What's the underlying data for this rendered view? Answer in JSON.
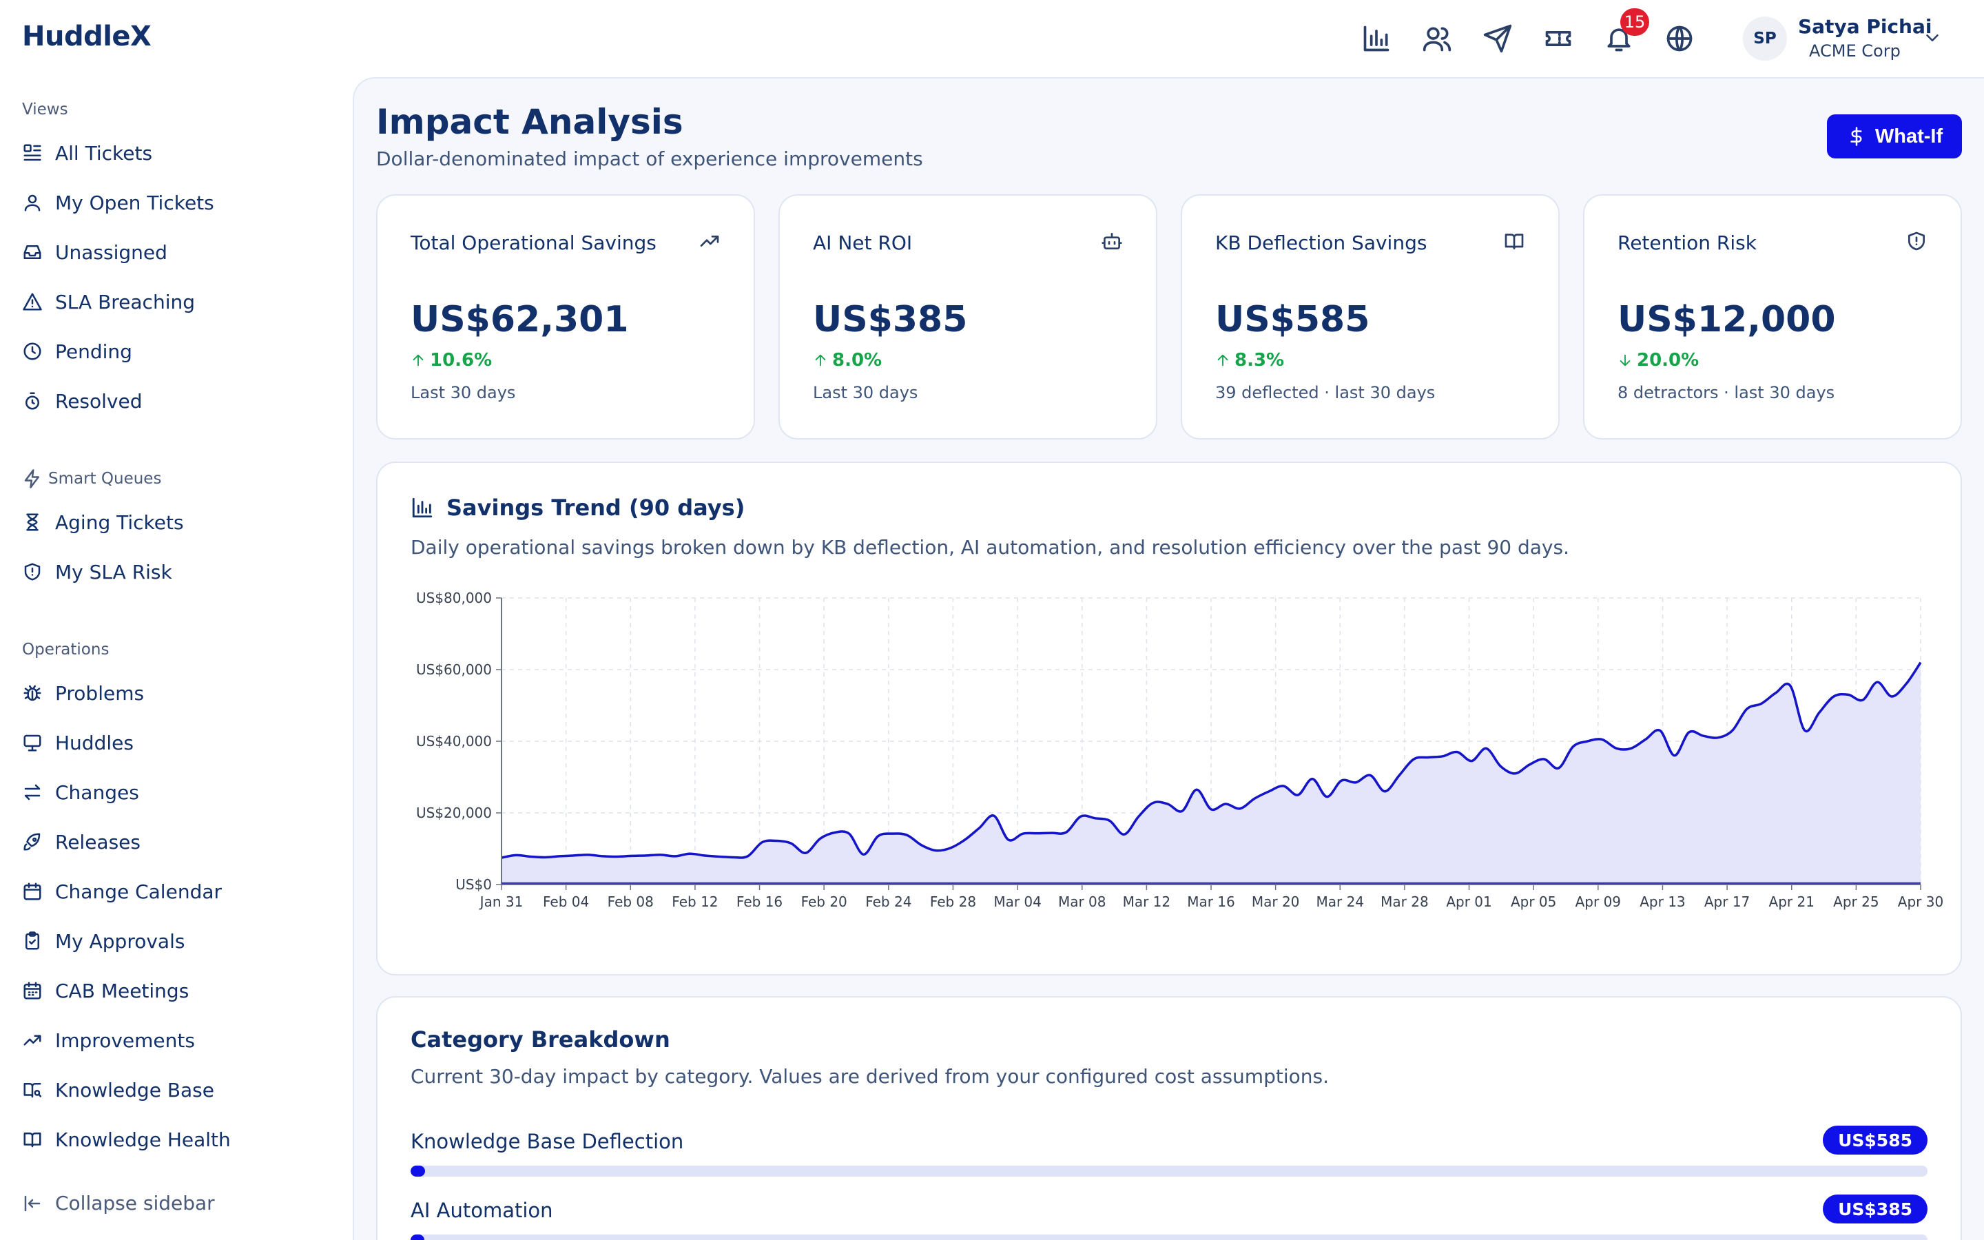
{
  "app": {
    "name": "HuddleX"
  },
  "sidebar": {
    "sections": [
      {
        "title": "Views",
        "items": [
          {
            "label": "All Tickets",
            "icon": "list-icon"
          },
          {
            "label": "My Open Tickets",
            "icon": "user-icon"
          },
          {
            "label": "Unassigned",
            "icon": "inbox-icon"
          },
          {
            "label": "SLA Breaching",
            "icon": "alert-triangle-icon"
          },
          {
            "label": "Pending",
            "icon": "clock-icon"
          },
          {
            "label": "Resolved",
            "icon": "timer-icon"
          }
        ]
      },
      {
        "title": "Smart Queues",
        "items": [
          {
            "label": "Aging Tickets",
            "icon": "hourglass-icon"
          },
          {
            "label": "My SLA Risk",
            "icon": "shield-alert-icon"
          }
        ]
      },
      {
        "title": "Operations",
        "items": [
          {
            "label": "Problems",
            "icon": "bug-icon"
          },
          {
            "label": "Huddles",
            "icon": "monitor-icon"
          },
          {
            "label": "Changes",
            "icon": "swap-icon"
          },
          {
            "label": "Releases",
            "icon": "rocket-icon"
          },
          {
            "label": "Change Calendar",
            "icon": "calendar-icon"
          },
          {
            "label": "My Approvals",
            "icon": "clipboard-check-icon"
          },
          {
            "label": "CAB Meetings",
            "icon": "calendar-grid-icon"
          },
          {
            "label": "Improvements",
            "icon": "trending-up-icon"
          },
          {
            "label": "Knowledge Base",
            "icon": "book-search-icon"
          },
          {
            "label": "Knowledge Health",
            "icon": "book-open-icon"
          }
        ]
      }
    ],
    "collapse_label": "Collapse sidebar"
  },
  "header": {
    "icons": [
      "bar-chart-icon",
      "users-icon",
      "send-icon",
      "ticket-icon",
      "bell-icon",
      "globe-icon"
    ],
    "notification_count": "15",
    "user": {
      "initials": "SP",
      "name": "Satya Pichai",
      "org": "ACME Corp"
    }
  },
  "page": {
    "title": "Impact Analysis",
    "subtitle": "Dollar-denominated impact of experience improvements",
    "whatif_label": "What-If"
  },
  "kpis": [
    {
      "title": "Total Operational Savings",
      "icon": "trending-up-icon",
      "value": "US$62,301",
      "delta": "10.6%",
      "direction": "up",
      "note": "Last 30 days"
    },
    {
      "title": "AI Net ROI",
      "icon": "bot-icon",
      "value": "US$385",
      "delta": "8.0%",
      "direction": "up",
      "note": "Last 30 days"
    },
    {
      "title": "KB Deflection Savings",
      "icon": "book-open-icon",
      "value": "US$585",
      "delta": "8.3%",
      "direction": "up",
      "note": "39 deflected · last 30 days"
    },
    {
      "title": "Retention Risk",
      "icon": "shield-alert-icon",
      "value": "US$12,000",
      "delta": "20.0%",
      "direction": "down",
      "note": "8 detractors · last 30 days"
    }
  ],
  "trend": {
    "title": "Savings Trend (90 days)",
    "description": "Daily operational savings broken down by KB deflection, AI automation, and resolution efficiency over the past 90 days."
  },
  "chart_data": {
    "type": "area",
    "ylim": [
      0,
      80000
    ],
    "yticks": [
      "US$0",
      "US$20,000",
      "US$40,000",
      "US$60,000",
      "US$80,000"
    ],
    "ytick_values": [
      0,
      20000,
      40000,
      60000,
      80000
    ],
    "xticks": [
      "Jan 31",
      "Feb 04",
      "Feb 08",
      "Feb 12",
      "Feb 16",
      "Feb 20",
      "Feb 24",
      "Feb 28",
      "Mar 04",
      "Mar 08",
      "Mar 12",
      "Mar 16",
      "Mar 20",
      "Mar 24",
      "Mar 28",
      "Apr 01",
      "Apr 05",
      "Apr 09",
      "Apr 13",
      "Apr 17",
      "Apr 21",
      "Apr 25",
      "Apr 30"
    ],
    "grid": true,
    "area_color": "#e4e4fb",
    "line_color": "#1414c8",
    "series": [
      {
        "values": [
          7500,
          8200,
          7800,
          7600,
          7900,
          8100,
          8300,
          7900,
          7800,
          8000,
          8100,
          8300,
          7900,
          8600,
          8100,
          7800,
          7600,
          7900,
          11800,
          12200,
          11500,
          8800,
          12800,
          14500,
          14200,
          8400,
          13500,
          14200,
          13800,
          11000,
          9500,
          10200,
          12500,
          15800,
          19200,
          12500,
          14200,
          14300,
          14400,
          14600,
          19000,
          18500,
          17800,
          14000,
          19000,
          22800,
          22500,
          20500,
          26500,
          21000,
          22500,
          21200,
          24000,
          26000,
          27500,
          25000,
          29500,
          24500,
          29000,
          28500,
          30500,
          26000,
          30500,
          35000,
          35500,
          35800,
          37000,
          34500,
          38000,
          33000,
          31000,
          33500,
          35000,
          32500,
          38500,
          40000,
          40500,
          38000,
          38000,
          40500,
          43000,
          36000,
          42500,
          41500,
          41000,
          43000,
          49000,
          50500,
          53500,
          55500,
          43000,
          48000,
          52500,
          53000,
          51500,
          56500,
          52500,
          56000,
          62000
        ]
      }
    ]
  },
  "categories": {
    "title": "Category Breakdown",
    "description": "Current 30-day impact by category. Values are derived from your configured cost assumptions.",
    "items": [
      {
        "label": "Knowledge Base Deflection",
        "value": "US$585",
        "fraction": 0.0094
      },
      {
        "label": "AI Automation",
        "value": "US$385",
        "fraction": 0.0062
      }
    ]
  }
}
